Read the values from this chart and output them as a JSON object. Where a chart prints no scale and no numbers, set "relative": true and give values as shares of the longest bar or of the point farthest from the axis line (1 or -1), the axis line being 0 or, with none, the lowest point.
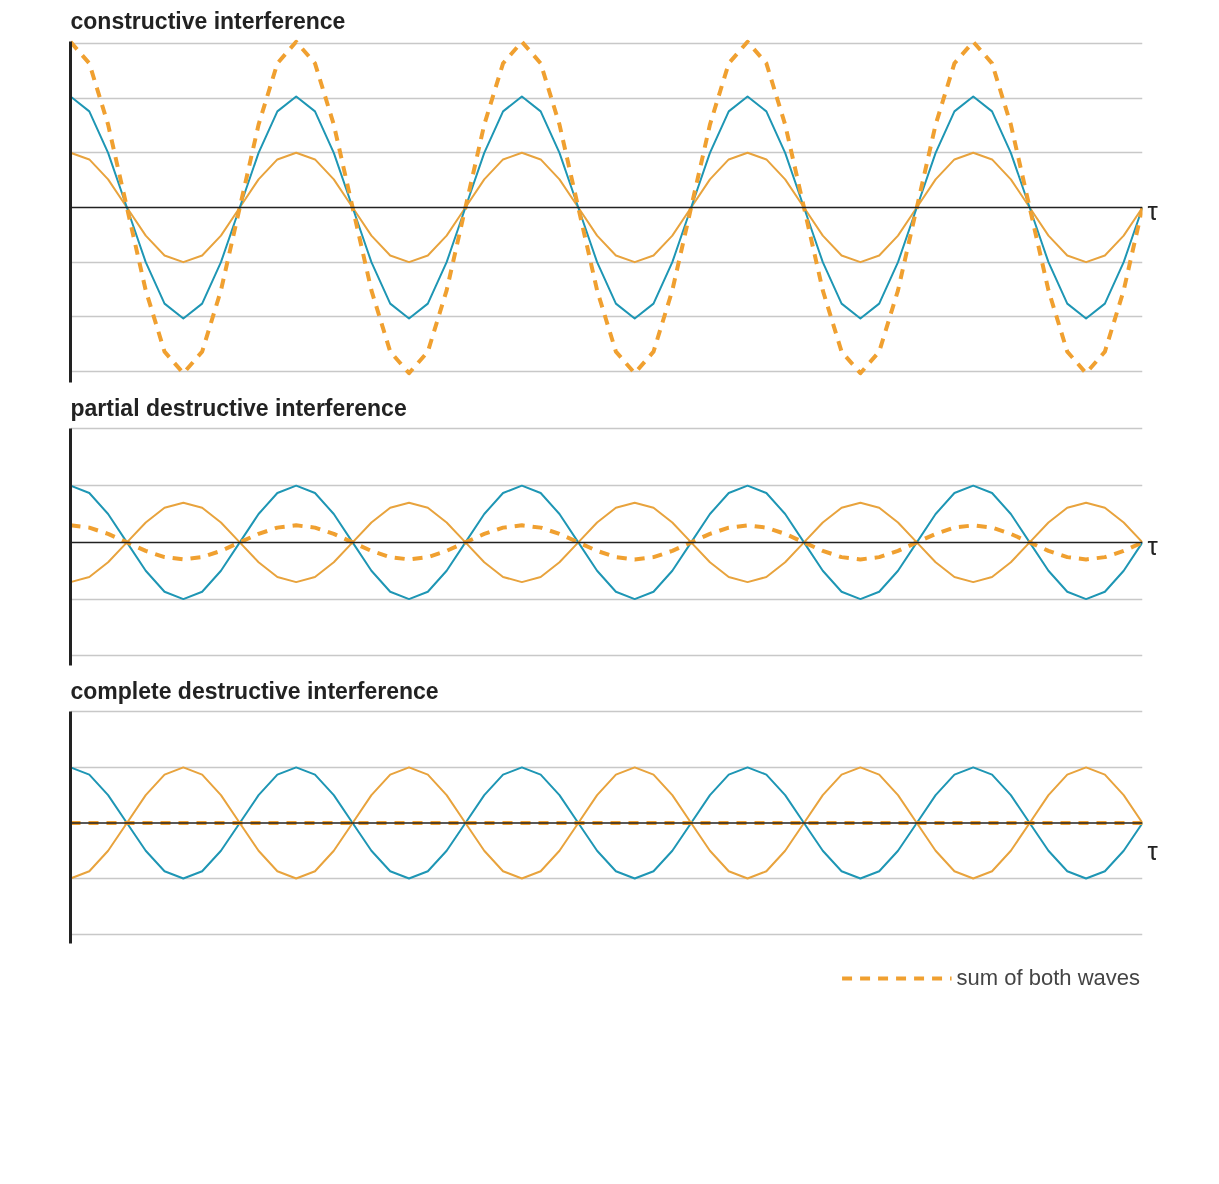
{
  "chart_data": [
    {
      "type": "line",
      "title": "constructive interference",
      "xlabel": "τ",
      "relative": true,
      "grid": "y",
      "tick_labels": false,
      "legend": false,
      "categories": [
        null,
        null,
        null,
        null,
        null,
        null,
        null,
        null,
        null,
        null,
        null,
        null,
        null,
        null,
        null,
        null,
        null,
        null,
        null,
        null,
        null,
        null,
        null,
        null,
        null,
        null,
        null,
        null,
        null,
        null,
        null,
        null,
        null,
        null,
        null,
        null,
        null,
        null,
        null,
        null,
        null,
        null,
        null,
        null,
        null,
        null,
        null,
        null,
        null,
        null,
        null,
        null,
        null,
        null,
        null,
        null,
        null,
        null
      ],
      "series": [
        {
          "color": "#e8a33d",
          "values": [
            0.33,
            0.29,
            0.17,
            0,
            -0.17,
            -0.29,
            -0.33,
            -0.29,
            -0.17,
            0,
            0.17,
            0.29,
            0.33,
            0.29,
            0.17,
            0,
            -0.17,
            -0.29,
            -0.33,
            -0.29,
            -0.17,
            0,
            0.17,
            0.29,
            0.33,
            0.29,
            0.17,
            0,
            -0.17,
            -0.29,
            -0.33,
            -0.29,
            -0.17,
            0,
            0.17,
            0.29,
            0.33,
            0.29,
            0.17,
            0,
            -0.17,
            -0.29,
            -0.33,
            -0.29,
            -0.17,
            0,
            0.17,
            0.29,
            0.33,
            0.29,
            0.17,
            0,
            -0.17,
            -0.29,
            -0.33,
            -0.29,
            -0.17,
            0
          ]
        },
        {
          "color": "#1e96b4",
          "values": [
            0.67,
            0.58,
            0.33,
            0,
            -0.33,
            -0.58,
            -0.67,
            -0.58,
            -0.33,
            0,
            0.33,
            0.58,
            0.67,
            0.58,
            0.33,
            0,
            -0.33,
            -0.58,
            -0.67,
            -0.58,
            -0.33,
            0,
            0.33,
            0.58,
            0.67,
            0.58,
            0.33,
            0,
            -0.33,
            -0.58,
            -0.67,
            -0.58,
            -0.33,
            0,
            0.33,
            0.58,
            0.67,
            0.58,
            0.33,
            0,
            -0.33,
            -0.58,
            -0.67,
            -0.58,
            -0.33,
            0,
            0.33,
            0.58,
            0.67,
            0.58,
            0.33,
            0,
            -0.33,
            -0.58,
            -0.67,
            -0.58,
            -0.33,
            0
          ]
        },
        {
          "color": "#f0a030",
          "line_style": "dashed",
          "values": [
            1,
            0.87,
            0.5,
            0,
            -0.5,
            -0.87,
            -1,
            -0.87,
            -0.5,
            0,
            0.5,
            0.87,
            1,
            0.87,
            0.5,
            0,
            -0.5,
            -0.87,
            -1,
            -0.87,
            -0.5,
            0,
            0.5,
            0.87,
            1,
            0.87,
            0.5,
            0,
            -0.5,
            -0.87,
            -1,
            -0.87,
            -0.5,
            0,
            0.5,
            0.87,
            1,
            0.87,
            0.5,
            0,
            -0.5,
            -0.87,
            -1,
            -0.87,
            -0.5,
            0,
            0.5,
            0.87,
            1,
            0.87,
            0.5,
            0,
            -0.5,
            -0.87,
            -1,
            -0.87,
            -0.5,
            0
          ]
        }
      ]
    },
    {
      "type": "line",
      "title": "partial destructive interference",
      "xlabel": "τ",
      "relative": true,
      "grid": "y",
      "tick_labels": false,
      "legend": false,
      "categories": [
        null,
        null,
        null,
        null,
        null,
        null,
        null,
        null,
        null,
        null,
        null,
        null,
        null,
        null,
        null,
        null,
        null,
        null,
        null,
        null,
        null,
        null,
        null,
        null,
        null,
        null,
        null,
        null,
        null,
        null,
        null,
        null,
        null,
        null,
        null,
        null,
        null,
        null,
        null,
        null,
        null,
        null,
        null,
        null,
        null,
        null,
        null,
        null,
        null,
        null,
        null,
        null,
        null,
        null,
        null,
        null,
        null,
        null
      ],
      "series": [
        {
          "color": "#1e96b4",
          "values": [
            1,
            0.87,
            0.5,
            0,
            -0.5,
            -0.87,
            -1,
            -0.87,
            -0.5,
            0,
            0.5,
            0.87,
            1,
            0.87,
            0.5,
            0,
            -0.5,
            -0.87,
            -1,
            -0.87,
            -0.5,
            0,
            0.5,
            0.87,
            1,
            0.87,
            0.5,
            0,
            -0.5,
            -0.87,
            -1,
            -0.87,
            -0.5,
            0,
            0.5,
            0.87,
            1,
            0.87,
            0.5,
            0,
            -0.5,
            -0.87,
            -1,
            -0.87,
            -0.5,
            0,
            0.5,
            0.87,
            1,
            0.87,
            0.5,
            0,
            -0.5,
            -0.87,
            -1,
            -0.87,
            -0.5,
            0
          ]
        },
        {
          "color": "#e8a33d",
          "values": [
            -0.7,
            -0.61,
            -0.35,
            0,
            0.35,
            0.61,
            0.7,
            0.61,
            0.35,
            0,
            -0.35,
            -0.61,
            -0.7,
            -0.61,
            -0.35,
            0,
            0.35,
            0.61,
            0.7,
            0.61,
            0.35,
            0,
            -0.35,
            -0.61,
            -0.7,
            -0.61,
            -0.35,
            0,
            0.35,
            0.61,
            0.7,
            0.61,
            0.35,
            0,
            -0.35,
            -0.61,
            -0.7,
            -0.61,
            -0.35,
            0,
            0.35,
            0.61,
            0.7,
            0.61,
            0.35,
            0,
            -0.35,
            -0.61,
            -0.7,
            -0.61,
            -0.35,
            0,
            0.35,
            0.61,
            0.7,
            0.61,
            0.35,
            0
          ]
        },
        {
          "color": "#f0a030",
          "line_style": "dashed",
          "values": [
            0.3,
            0.26,
            0.15,
            0,
            -0.15,
            -0.26,
            -0.3,
            -0.26,
            -0.15,
            0,
            0.15,
            0.26,
            0.3,
            0.26,
            0.15,
            0,
            -0.15,
            -0.26,
            -0.3,
            -0.26,
            -0.15,
            0,
            0.15,
            0.26,
            0.3,
            0.26,
            0.15,
            0,
            -0.15,
            -0.26,
            -0.3,
            -0.26,
            -0.15,
            0,
            0.15,
            0.26,
            0.3,
            0.26,
            0.15,
            0,
            -0.15,
            -0.26,
            -0.3,
            -0.26,
            -0.15,
            0,
            0.15,
            0.26,
            0.3,
            0.26,
            0.15,
            0,
            -0.15,
            -0.26,
            -0.3,
            -0.26,
            -0.15,
            0
          ]
        }
      ]
    },
    {
      "type": "line",
      "title": "complete destructive interference",
      "xlabel": "τ",
      "relative": true,
      "grid": "y",
      "tick_labels": false,
      "legend": "bottom right",
      "categories": [
        null,
        null,
        null,
        null,
        null,
        null,
        null,
        null,
        null,
        null,
        null,
        null,
        null,
        null,
        null,
        null,
        null,
        null,
        null,
        null,
        null,
        null,
        null,
        null,
        null,
        null,
        null,
        null,
        null,
        null,
        null,
        null,
        null,
        null,
        null,
        null,
        null,
        null,
        null,
        null,
        null,
        null,
        null,
        null,
        null,
        null,
        null,
        null,
        null,
        null,
        null,
        null,
        null,
        null,
        null,
        null,
        null,
        null
      ],
      "series": [
        {
          "color": "#1e96b4",
          "values": [
            1,
            0.87,
            0.5,
            0,
            -0.5,
            -0.87,
            -1,
            -0.87,
            -0.5,
            0,
            0.5,
            0.87,
            1,
            0.87,
            0.5,
            0,
            -0.5,
            -0.87,
            -1,
            -0.87,
            -0.5,
            0,
            0.5,
            0.87,
            1,
            0.87,
            0.5,
            0,
            -0.5,
            -0.87,
            -1,
            -0.87,
            -0.5,
            0,
            0.5,
            0.87,
            1,
            0.87,
            0.5,
            0,
            -0.5,
            -0.87,
            -1,
            -0.87,
            -0.5,
            0,
            0.5,
            0.87,
            1,
            0.87,
            0.5,
            0,
            -0.5,
            -0.87,
            -1,
            -0.87,
            -0.5,
            0
          ]
        },
        {
          "color": "#e8a33d",
          "values": [
            -1,
            -0.87,
            -0.5,
            0,
            0.5,
            0.87,
            1,
            0.87,
            0.5,
            0,
            -0.5,
            -0.87,
            -1,
            -0.87,
            -0.5,
            0,
            0.5,
            0.87,
            1,
            0.87,
            0.5,
            0,
            -0.5,
            -0.87,
            -1,
            -0.87,
            -0.5,
            0,
            0.5,
            0.87,
            1,
            0.87,
            0.5,
            0,
            -0.5,
            -0.87,
            -1,
            -0.87,
            -0.5,
            0,
            0.5,
            0.87,
            1,
            0.87,
            0.5,
            0,
            -0.5,
            -0.87,
            -1,
            -0.87,
            -0.5,
            0,
            0.5,
            0.87,
            1,
            0.87,
            0.5,
            0
          ]
        },
        {
          "name": "sum of both waves",
          "color": "#f0a030",
          "line_style": "dashed",
          "values": [
            0,
            0,
            0,
            0,
            0,
            0,
            0,
            0,
            0,
            0,
            0,
            0,
            0,
            0,
            0,
            0,
            0,
            0,
            0,
            0,
            0,
            0,
            0,
            0,
            0,
            0,
            0,
            0,
            0,
            0,
            0,
            0,
            0,
            0,
            0,
            0,
            0,
            0,
            0,
            0,
            0,
            0,
            0,
            0,
            0,
            0,
            0,
            0,
            0,
            0,
            0,
            0,
            0,
            0,
            0,
            0,
            0,
            0
          ]
        }
      ]
    }
  ]
}
